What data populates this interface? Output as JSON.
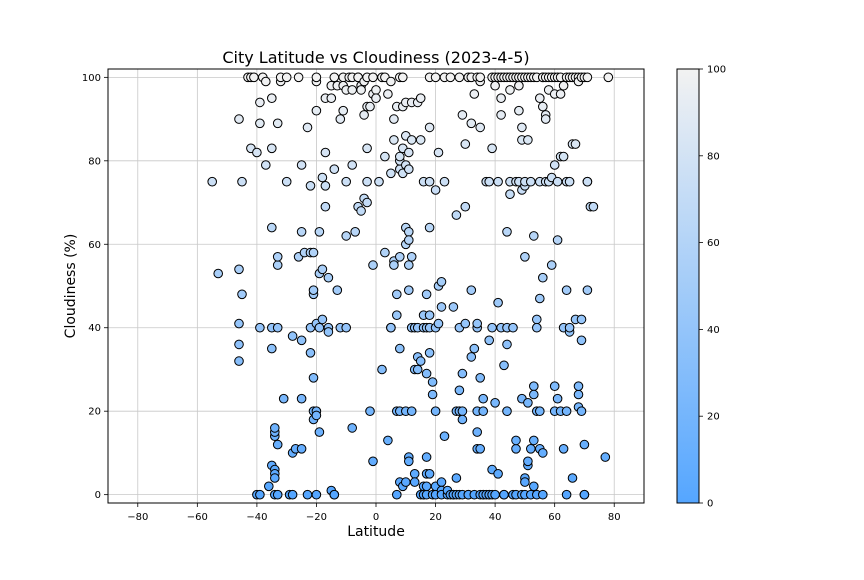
{
  "chart_data": {
    "type": "scatter",
    "title": "City Latitude vs Cloudiness (2023-4-5)",
    "xlabel": "Latitude",
    "ylabel": "Cloudiness (%)",
    "xlim": [
      -90,
      90
    ],
    "ylim": [
      -2,
      102
    ],
    "xticks": [
      -80,
      -60,
      -40,
      -20,
      0,
      20,
      40,
      60,
      80
    ],
    "yticks": [
      0,
      20,
      40,
      60,
      80,
      100
    ],
    "grid": true,
    "colorbar": {
      "min": 0,
      "max": 100,
      "ticks": [
        0,
        20,
        40,
        60,
        80,
        100
      ],
      "color_low": "#55a6ff",
      "color_high": "#f2f2f2",
      "position": "right"
    },
    "marker_edge_color": "#000000",
    "points": [
      [
        -55,
        75
      ],
      [
        -53,
        53
      ],
      [
        -46,
        90
      ],
      [
        -46,
        54
      ],
      [
        -46,
        41
      ],
      [
        -46,
        36
      ],
      [
        -46,
        32
      ],
      [
        -45,
        75
      ],
      [
        -45,
        48
      ],
      [
        -43,
        100
      ],
      [
        -42,
        100
      ],
      [
        -42,
        83
      ],
      [
        -41,
        100
      ],
      [
        -40,
        82
      ],
      [
        -40,
        0
      ],
      [
        -39,
        0
      ],
      [
        -39,
        89
      ],
      [
        -39,
        94
      ],
      [
        -39,
        40
      ],
      [
        -38,
        100
      ],
      [
        -37,
        79
      ],
      [
        -37,
        99
      ],
      [
        -36,
        2
      ],
      [
        -35,
        40
      ],
      [
        -35,
        35
      ],
      [
        -35,
        64
      ],
      [
        -35,
        83
      ],
      [
        -35,
        95
      ],
      [
        -35,
        7
      ],
      [
        -34,
        14
      ],
      [
        -34,
        15
      ],
      [
        -34,
        16
      ],
      [
        -34,
        6
      ],
      [
        -34,
        5
      ],
      [
        -34,
        4
      ],
      [
        -34,
        0
      ],
      [
        -33,
        0
      ],
      [
        -33,
        12
      ],
      [
        -33,
        40
      ],
      [
        -33,
        55
      ],
      [
        -33,
        57
      ],
      [
        -33,
        89
      ],
      [
        -32,
        99
      ],
      [
        -32,
        100
      ],
      [
        -31,
        23
      ],
      [
        -30,
        100
      ],
      [
        -30,
        75
      ],
      [
        -29,
        0
      ],
      [
        -28,
        0
      ],
      [
        -28,
        10
      ],
      [
        -28,
        38
      ],
      [
        -27,
        11
      ],
      [
        -26,
        100
      ],
      [
        -26,
        57
      ],
      [
        -25,
        11
      ],
      [
        -25,
        23
      ],
      [
        -25,
        63
      ],
      [
        -25,
        79
      ],
      [
        -25,
        37
      ],
      [
        -24,
        58
      ],
      [
        -23,
        0
      ],
      [
        -23,
        88
      ],
      [
        -22,
        58
      ],
      [
        -22,
        34
      ],
      [
        -22,
        40
      ],
      [
        -22,
        74
      ],
      [
        -21,
        48
      ],
      [
        -21,
        28
      ],
      [
        -21,
        18
      ],
      [
        -21,
        20
      ],
      [
        -21,
        49
      ],
      [
        -21,
        58
      ],
      [
        -20,
        41
      ],
      [
        -20,
        20
      ],
      [
        -20,
        19
      ],
      [
        -20,
        99
      ],
      [
        -20,
        100
      ],
      [
        -20,
        92
      ],
      [
        -20,
        0
      ],
      [
        -19,
        15
      ],
      [
        -19,
        63
      ],
      [
        -19,
        40
      ],
      [
        -19,
        53
      ],
      [
        -18,
        76
      ],
      [
        -18,
        42
      ],
      [
        -18,
        54
      ],
      [
        -17,
        95
      ],
      [
        -17,
        82
      ],
      [
        -17,
        69
      ],
      [
        -17,
        74
      ],
      [
        -16,
        40
      ],
      [
        -16,
        39
      ],
      [
        -16,
        52
      ],
      [
        -15,
        95
      ],
      [
        -15,
        98
      ],
      [
        -15,
        1
      ],
      [
        -14,
        100
      ],
      [
        -14,
        78
      ],
      [
        -14,
        0
      ],
      [
        -14,
        0
      ],
      [
        -13,
        49
      ],
      [
        -13,
        98
      ],
      [
        -12,
        40
      ],
      [
        -12,
        90
      ],
      [
        -11,
        100
      ],
      [
        -11,
        92
      ],
      [
        -11,
        98
      ],
      [
        -10,
        75
      ],
      [
        -10,
        97
      ],
      [
        -10,
        62
      ],
      [
        -10,
        40
      ],
      [
        -9,
        100
      ],
      [
        -8,
        97
      ],
      [
        -8,
        16
      ],
      [
        -8,
        100
      ],
      [
        -8,
        79
      ],
      [
        -7,
        63
      ],
      [
        -6,
        100
      ],
      [
        -6,
        100
      ],
      [
        -6,
        69
      ],
      [
        -5,
        68
      ],
      [
        -5,
        98
      ],
      [
        -5,
        97
      ],
      [
        -4,
        99
      ],
      [
        -4,
        91
      ],
      [
        -4,
        71
      ],
      [
        -3,
        93
      ],
      [
        -3,
        83
      ],
      [
        -3,
        75
      ],
      [
        -3,
        100
      ],
      [
        -3,
        70
      ],
      [
        -2,
        93
      ],
      [
        -2,
        20
      ],
      [
        -1,
        96
      ],
      [
        -1,
        100
      ],
      [
        -1,
        55
      ],
      [
        -1,
        8
      ],
      [
        0,
        97
      ],
      [
        0,
        95
      ],
      [
        1,
        75
      ],
      [
        2,
        100
      ],
      [
        2,
        30
      ],
      [
        3,
        81
      ],
      [
        3,
        58
      ],
      [
        3,
        100
      ],
      [
        4,
        13
      ],
      [
        4,
        96
      ],
      [
        5,
        99
      ],
      [
        5,
        77
      ],
      [
        5,
        40
      ],
      [
        5,
        40
      ],
      [
        6,
        56
      ],
      [
        6,
        55
      ],
      [
        6,
        85
      ],
      [
        6,
        90
      ],
      [
        7,
        93
      ],
      [
        7,
        48
      ],
      [
        7,
        0
      ],
      [
        7,
        20
      ],
      [
        7,
        43
      ],
      [
        8,
        57
      ],
      [
        8,
        78
      ],
      [
        8,
        80
      ],
      [
        8,
        81
      ],
      [
        8,
        35
      ],
      [
        8,
        20
      ],
      [
        8,
        3
      ],
      [
        8,
        100
      ],
      [
        9,
        83
      ],
      [
        9,
        93
      ],
      [
        9,
        77
      ],
      [
        9,
        2
      ],
      [
        9,
        100
      ],
      [
        10,
        60
      ],
      [
        10,
        64
      ],
      [
        10,
        94
      ],
      [
        10,
        20
      ],
      [
        10,
        3
      ],
      [
        10,
        86
      ],
      [
        10,
        79
      ],
      [
        11,
        55
      ],
      [
        11,
        63
      ],
      [
        11,
        61
      ],
      [
        11,
        82
      ],
      [
        11,
        9
      ],
      [
        11,
        49
      ],
      [
        11,
        78
      ],
      [
        11,
        8
      ],
      [
        12,
        57
      ],
      [
        12,
        85
      ],
      [
        12,
        20
      ],
      [
        12,
        94
      ],
      [
        12,
        40
      ],
      [
        13,
        40
      ],
      [
        13,
        5
      ],
      [
        13,
        30
      ],
      [
        13,
        3
      ],
      [
        14,
        33
      ],
      [
        14,
        94
      ],
      [
        14,
        30
      ],
      [
        14,
        40
      ],
      [
        15,
        95
      ],
      [
        15,
        85
      ],
      [
        15,
        32
      ],
      [
        15,
        0
      ],
      [
        16,
        75
      ],
      [
        16,
        43
      ],
      [
        16,
        40
      ],
      [
        16,
        2
      ],
      [
        16,
        0
      ],
      [
        16,
        0
      ],
      [
        17,
        40
      ],
      [
        17,
        48
      ],
      [
        17,
        0
      ],
      [
        17,
        2
      ],
      [
        17,
        29
      ],
      [
        17,
        9
      ],
      [
        17,
        5
      ],
      [
        18,
        5
      ],
      [
        18,
        100
      ],
      [
        18,
        88
      ],
      [
        18,
        40
      ],
      [
        18,
        64
      ],
      [
        18,
        34
      ],
      [
        18,
        75
      ],
      [
        18,
        43
      ],
      [
        19,
        0
      ],
      [
        19,
        27
      ],
      [
        19,
        24
      ],
      [
        20,
        100
      ],
      [
        20,
        73
      ],
      [
        20,
        40
      ],
      [
        20,
        2
      ],
      [
        20,
        20
      ],
      [
        20,
        0
      ],
      [
        21,
        82
      ],
      [
        21,
        41
      ],
      [
        21,
        50
      ],
      [
        22,
        45
      ],
      [
        22,
        51
      ],
      [
        22,
        3
      ],
      [
        22,
        1
      ],
      [
        22,
        0
      ],
      [
        23,
        14
      ],
      [
        23,
        75
      ],
      [
        23,
        100
      ],
      [
        24,
        0
      ],
      [
        24,
        1
      ],
      [
        25,
        100
      ],
      [
        25,
        0
      ],
      [
        26,
        0
      ],
      [
        26,
        0
      ],
      [
        26,
        45
      ],
      [
        27,
        0
      ],
      [
        27,
        4
      ],
      [
        27,
        20
      ],
      [
        27,
        67
      ],
      [
        28,
        25
      ],
      [
        28,
        20
      ],
      [
        28,
        40
      ],
      [
        28,
        0
      ],
      [
        28,
        100
      ],
      [
        29,
        29
      ],
      [
        29,
        20
      ],
      [
        29,
        18
      ],
      [
        29,
        91
      ],
      [
        29,
        0
      ],
      [
        30,
        41
      ],
      [
        30,
        84
      ],
      [
        30,
        69
      ],
      [
        31,
        0
      ],
      [
        31,
        100
      ],
      [
        31,
        0
      ],
      [
        32,
        33
      ],
      [
        32,
        100
      ],
      [
        32,
        49
      ],
      [
        32,
        89
      ],
      [
        33,
        96
      ],
      [
        33,
        35
      ],
      [
        33,
        0
      ],
      [
        34,
        40
      ],
      [
        34,
        20
      ],
      [
        34,
        41
      ],
      [
        34,
        15
      ],
      [
        34,
        11
      ],
      [
        34,
        100
      ],
      [
        35,
        99
      ],
      [
        35,
        88
      ],
      [
        35,
        28
      ],
      [
        35,
        100
      ],
      [
        35,
        11
      ],
      [
        35,
        0
      ],
      [
        36,
        0
      ],
      [
        36,
        23
      ],
      [
        36,
        20
      ],
      [
        36,
        0
      ],
      [
        37,
        0
      ],
      [
        37,
        75
      ],
      [
        38,
        0
      ],
      [
        38,
        75
      ],
      [
        38,
        37
      ],
      [
        38,
        0
      ],
      [
        39,
        6
      ],
      [
        39,
        40
      ],
      [
        39,
        0
      ],
      [
        39,
        83
      ],
      [
        39,
        100
      ],
      [
        40,
        100
      ],
      [
        40,
        22
      ],
      [
        40,
        0
      ],
      [
        40,
        98
      ],
      [
        41,
        46
      ],
      [
        41,
        5
      ],
      [
        41,
        100
      ],
      [
        41,
        75
      ],
      [
        42,
        91
      ],
      [
        42,
        95
      ],
      [
        42,
        40
      ],
      [
        42,
        100
      ],
      [
        43,
        0
      ],
      [
        43,
        31
      ],
      [
        43,
        0
      ],
      [
        43,
        100
      ],
      [
        44,
        40
      ],
      [
        44,
        36
      ],
      [
        44,
        20
      ],
      [
        44,
        63
      ],
      [
        44,
        100
      ],
      [
        45,
        75
      ],
      [
        45,
        72
      ],
      [
        45,
        97
      ],
      [
        45,
        100
      ],
      [
        46,
        0
      ],
      [
        46,
        40
      ],
      [
        46,
        100
      ],
      [
        47,
        11
      ],
      [
        47,
        75
      ],
      [
        47,
        13
      ],
      [
        47,
        100
      ],
      [
        47,
        0
      ],
      [
        48,
        92
      ],
      [
        48,
        98
      ],
      [
        48,
        100
      ],
      [
        48,
        75
      ],
      [
        49,
        85
      ],
      [
        49,
        88
      ],
      [
        49,
        73
      ],
      [
        49,
        100
      ],
      [
        49,
        23
      ],
      [
        49,
        0
      ],
      [
        50,
        57
      ],
      [
        50,
        74
      ],
      [
        50,
        100
      ],
      [
        50,
        75
      ],
      [
        50,
        4
      ],
      [
        50,
        3
      ],
      [
        50,
        0
      ],
      [
        51,
        22
      ],
      [
        51,
        85
      ],
      [
        51,
        100
      ],
      [
        51,
        7
      ],
      [
        51,
        8
      ],
      [
        52,
        75
      ],
      [
        52,
        100
      ],
      [
        52,
        11
      ],
      [
        52,
        0
      ],
      [
        53,
        13
      ],
      [
        53,
        62
      ],
      [
        53,
        26
      ],
      [
        53,
        2
      ],
      [
        53,
        24
      ],
      [
        53,
        100
      ],
      [
        54,
        20
      ],
      [
        54,
        100
      ],
      [
        54,
        42
      ],
      [
        54,
        40
      ],
      [
        54,
        0
      ],
      [
        55,
        47
      ],
      [
        55,
        75
      ],
      [
        55,
        11
      ],
      [
        55,
        20
      ],
      [
        55,
        95
      ],
      [
        56,
        100
      ],
      [
        56,
        52
      ],
      [
        56,
        93
      ],
      [
        56,
        10
      ],
      [
        56,
        0
      ],
      [
        56,
        100
      ],
      [
        57,
        75
      ],
      [
        57,
        91
      ],
      [
        57,
        100
      ],
      [
        57,
        90
      ],
      [
        58,
        97
      ],
      [
        58,
        75
      ],
      [
        58,
        100
      ],
      [
        59,
        76
      ],
      [
        59,
        55
      ],
      [
        59,
        100
      ],
      [
        60,
        79
      ],
      [
        60,
        100
      ],
      [
        60,
        96
      ],
      [
        60,
        20
      ],
      [
        60,
        26
      ],
      [
        61,
        61
      ],
      [
        61,
        75
      ],
      [
        61,
        100
      ],
      [
        61,
        23
      ],
      [
        62,
        96
      ],
      [
        62,
        100
      ],
      [
        62,
        81
      ],
      [
        62,
        20
      ],
      [
        63,
        81
      ],
      [
        63,
        40
      ],
      [
        63,
        98
      ],
      [
        63,
        11
      ],
      [
        64,
        100
      ],
      [
        64,
        49
      ],
      [
        64,
        75
      ],
      [
        64,
        20
      ],
      [
        64,
        0
      ],
      [
        65,
        75
      ],
      [
        65,
        100
      ],
      [
        65,
        39
      ],
      [
        65,
        40
      ],
      [
        66,
        84
      ],
      [
        66,
        100
      ],
      [
        66,
        4
      ],
      [
        67,
        84
      ],
      [
        67,
        42
      ],
      [
        67,
        100
      ],
      [
        68,
        100
      ],
      [
        68,
        99
      ],
      [
        68,
        24
      ],
      [
        68,
        26
      ],
      [
        68,
        21
      ],
      [
        69,
        20
      ],
      [
        69,
        42
      ],
      [
        69,
        37
      ],
      [
        69,
        100
      ],
      [
        70,
        100
      ],
      [
        70,
        0
      ],
      [
        70,
        0
      ],
      [
        70,
        12
      ],
      [
        71,
        75
      ],
      [
        71,
        100
      ],
      [
        71,
        75
      ],
      [
        71,
        49
      ],
      [
        72,
        69
      ],
      [
        73,
        69
      ],
      [
        77,
        9
      ],
      [
        78,
        100
      ]
    ]
  }
}
